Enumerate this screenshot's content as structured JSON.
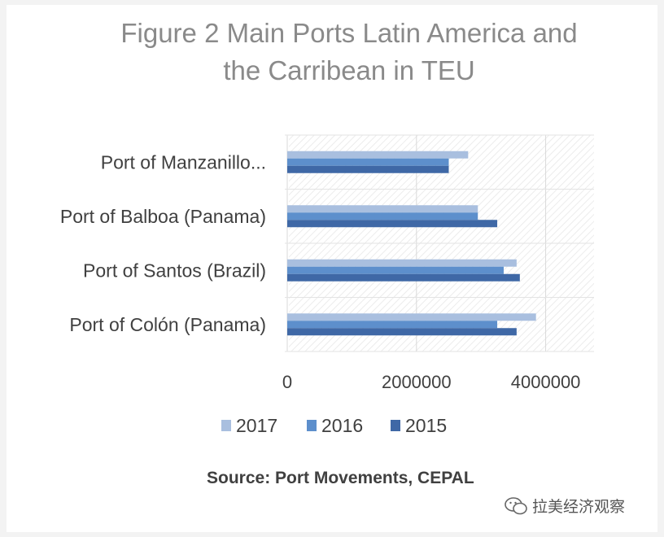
{
  "chart_data": {
    "type": "bar",
    "orientation": "horizontal",
    "title": "Figure 2 Main Ports Latin America and the Carribean in TEU",
    "title_lines": [
      "Figure 2 Main Ports Latin America and",
      "the Carribean in TEU"
    ],
    "categories": [
      "Port of Manzanillo...",
      "Port of Balboa (Panama)",
      "Port of Santos (Brazil)",
      "Port of Colón (Panama)"
    ],
    "series": [
      {
        "name": "2017",
        "color": "#a9bfdf",
        "values": [
          2800000,
          2950000,
          3550000,
          3850000
        ]
      },
      {
        "name": "2016",
        "color": "#5d8fcc",
        "values": [
          2500000,
          2950000,
          3350000,
          3250000
        ]
      },
      {
        "name": "2015",
        "color": "#3f68a6",
        "values": [
          2500000,
          3250000,
          3600000,
          3550000
        ]
      }
    ],
    "xlim": [
      0,
      5000000
    ],
    "x_ticks": [
      "0",
      "2000000",
      "4000000"
    ],
    "x_tick_values": [
      0,
      2000000,
      4000000
    ],
    "legend": "bottom",
    "grid": true,
    "xlabel": "",
    "ylabel": ""
  },
  "source": "Source: Port Movements, CEPAL",
  "watermark_text": "拉美经济观察",
  "colors": {
    "title": "#8a8a8a",
    "text": "#404040",
    "grid": "#d9d9d9"
  }
}
